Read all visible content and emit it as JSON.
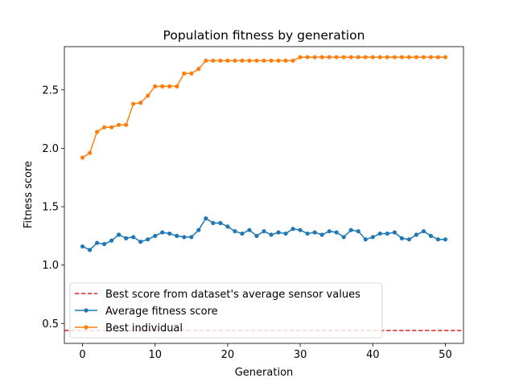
{
  "chart_data": {
    "type": "line",
    "title": "Population fitness by generation",
    "xlabel": "Generation",
    "ylabel": "Fitness score",
    "xlim": [
      -2.5,
      52.5
    ],
    "ylim": [
      0.33,
      2.87
    ],
    "xticks": [
      0,
      10,
      20,
      30,
      40,
      50
    ],
    "yticks": [
      0.5,
      1.0,
      1.5,
      2.0,
      2.5
    ],
    "xtick_labels": [
      "0",
      "10",
      "20",
      "30",
      "40",
      "50"
    ],
    "ytick_labels": [
      "0.5",
      "1.0",
      "1.5",
      "2.0",
      "2.5"
    ],
    "grid": false,
    "legend_position": "lower-left",
    "hline": {
      "name": "Best score from dataset's average sensor values",
      "y": 0.44,
      "color": "#d62728",
      "style": "dashed"
    },
    "x": [
      0,
      1,
      2,
      3,
      4,
      5,
      6,
      7,
      8,
      9,
      10,
      11,
      12,
      13,
      14,
      15,
      16,
      17,
      18,
      19,
      20,
      21,
      22,
      23,
      24,
      25,
      26,
      27,
      28,
      29,
      30,
      31,
      32,
      33,
      34,
      35,
      36,
      37,
      38,
      39,
      40,
      41,
      42,
      43,
      44,
      45,
      46,
      47,
      48,
      49,
      50
    ],
    "series": [
      {
        "name": "Average fitness score",
        "color": "#1f77b4",
        "values": [
          1.16,
          1.13,
          1.19,
          1.18,
          1.21,
          1.26,
          1.23,
          1.24,
          1.2,
          1.22,
          1.25,
          1.28,
          1.27,
          1.25,
          1.24,
          1.24,
          1.3,
          1.4,
          1.36,
          1.36,
          1.33,
          1.29,
          1.27,
          1.3,
          1.25,
          1.29,
          1.26,
          1.28,
          1.27,
          1.31,
          1.3,
          1.27,
          1.28,
          1.26,
          1.29,
          1.28,
          1.24,
          1.3,
          1.29,
          1.22,
          1.24,
          1.27,
          1.27,
          1.28,
          1.23,
          1.22,
          1.26,
          1.29,
          1.25,
          1.22,
          1.22
        ]
      },
      {
        "name": "Best individual",
        "color": "#ff7f0e",
        "values": [
          1.92,
          1.96,
          2.14,
          2.18,
          2.18,
          2.2,
          2.2,
          2.38,
          2.39,
          2.45,
          2.53,
          2.53,
          2.53,
          2.53,
          2.64,
          2.64,
          2.68,
          2.75,
          2.75,
          2.75,
          2.75,
          2.75,
          2.75,
          2.75,
          2.75,
          2.75,
          2.75,
          2.75,
          2.75,
          2.75,
          2.78,
          2.78,
          2.78,
          2.78,
          2.78,
          2.78,
          2.78,
          2.78,
          2.78,
          2.78,
          2.78,
          2.78,
          2.78,
          2.78,
          2.78,
          2.78,
          2.78,
          2.78,
          2.78,
          2.78,
          2.78
        ]
      }
    ]
  }
}
